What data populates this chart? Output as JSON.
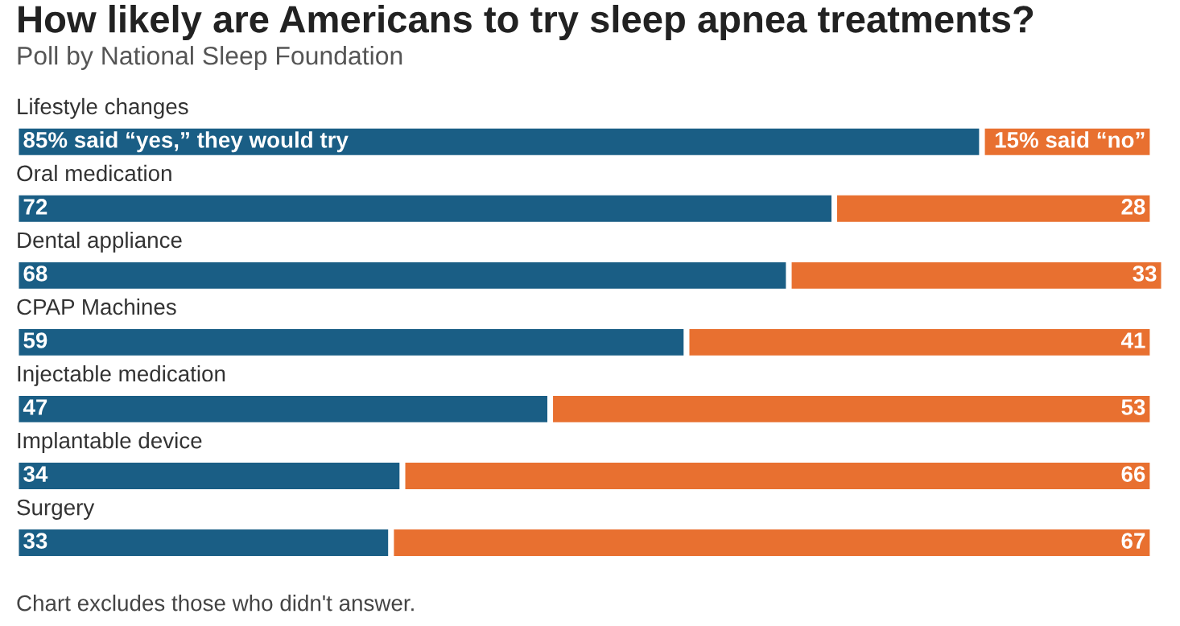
{
  "chart_data": {
    "type": "bar",
    "orientation": "horizontal",
    "title": "How likely are Americans to try sleep apnea treatments?",
    "subtitle": "Poll by National Sleep Foundation",
    "categories": [
      "Lifestyle changes",
      "Oral medication",
      "Dental appliance",
      "CPAP Machines",
      "Injectable medication",
      "Implantable device",
      "Surgery"
    ],
    "series": [
      {
        "color": "#1a5e85",
        "values": [
          85,
          72,
          68,
          59,
          47,
          34,
          33
        ],
        "value_labels": [
          "85% said “yes,” they would try",
          "72",
          "68",
          "59",
          "47",
          "34",
          "33"
        ]
      },
      {
        "color": "#e87030",
        "values": [
          15,
          28,
          33,
          41,
          53,
          66,
          67
        ],
        "value_labels": [
          "15% said “no”",
          "28",
          "33",
          "41",
          "53",
          "66",
          "67"
        ]
      }
    ],
    "stacked": true,
    "xlim": [
      0,
      101
    ],
    "tick_labels": false,
    "annotations": [
      "Chart excludes those who didn't answer."
    ]
  }
}
